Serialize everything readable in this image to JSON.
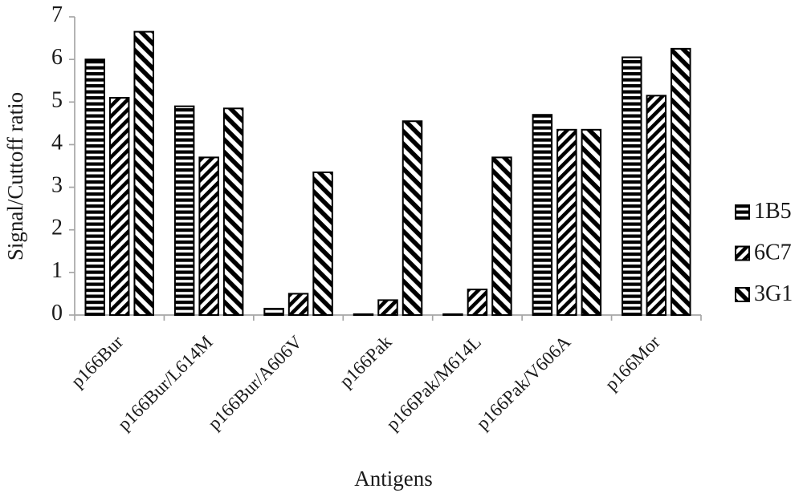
{
  "chart_data": {
    "type": "bar",
    "title": "",
    "xlabel": "Antigens",
    "ylabel": "Signal/Cuttoff ratio",
    "ylim": [
      0,
      7
    ],
    "ytick_labels": [
      "0",
      "1",
      "2",
      "3",
      "4",
      "5",
      "6",
      "7"
    ],
    "grid": false,
    "legend_position": "right",
    "categories": [
      "p166Bur",
      "p166Bur/L614M",
      "p166Bur/A606V",
      "p166Pak",
      "p166Pak/M614L",
      "p166Pak/V606A",
      "p166Mor"
    ],
    "series": [
      {
        "name": "1B5",
        "pattern": "horizontal-stripes",
        "values": [
          6.0,
          4.9,
          0.15,
          0.02,
          0.02,
          4.7,
          6.05
        ]
      },
      {
        "name": "6C7",
        "pattern": "diagonal-forward",
        "values": [
          5.1,
          3.7,
          0.5,
          0.35,
          0.6,
          4.35,
          5.15
        ]
      },
      {
        "name": "3G1",
        "pattern": "diagonal-backward",
        "values": [
          6.65,
          4.85,
          3.35,
          4.55,
          3.7,
          4.35,
          6.25
        ]
      }
    ],
    "colors": {
      "bar_fill": "#000000",
      "bar_background": "#ffffff",
      "axis": "#a6a6a6",
      "text": "#1a1a1a",
      "background": "#ffffff"
    }
  }
}
